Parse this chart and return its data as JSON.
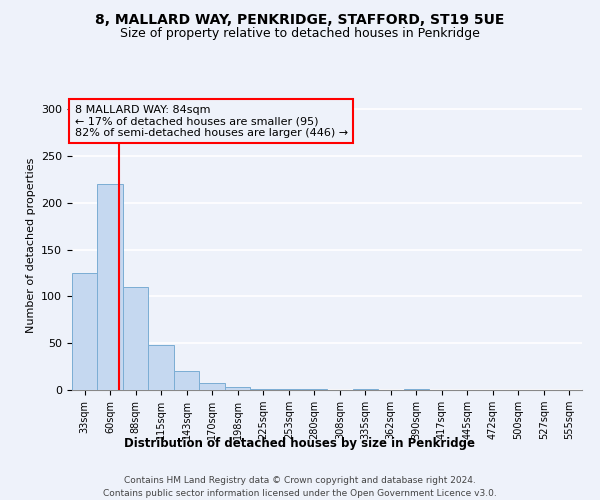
{
  "title1": "8, MALLARD WAY, PENKRIDGE, STAFFORD, ST19 5UE",
  "title2": "Size of property relative to detached houses in Penkridge",
  "xlabel": "Distribution of detached houses by size in Penkridge",
  "ylabel": "Number of detached properties",
  "footnote1": "Contains HM Land Registry data © Crown copyright and database right 2024.",
  "footnote2": "Contains public sector information licensed under the Open Government Licence v3.0.",
  "annotation_line1": "8 MALLARD WAY: 84sqm",
  "annotation_line2": "← 17% of detached houses are smaller (95)",
  "annotation_line3": "82% of semi-detached houses are larger (446) →",
  "property_size": 84,
  "bar_edges": [
    33,
    60,
    88,
    115,
    143,
    170,
    198,
    225,
    253,
    280,
    308,
    335,
    362,
    390,
    417,
    445,
    472,
    500,
    527,
    555,
    582
  ],
  "bar_heights": [
    125,
    220,
    110,
    48,
    20,
    7,
    3,
    1,
    1,
    1,
    0,
    1,
    0,
    1,
    0,
    0,
    0,
    0,
    0,
    0
  ],
  "bar_color": "#c5d8f0",
  "bar_edgecolor": "#7badd4",
  "vline_color": "red",
  "ylim": [
    0,
    310
  ],
  "yticks": [
    0,
    50,
    100,
    150,
    200,
    250,
    300
  ],
  "background_color": "#eef2fa"
}
